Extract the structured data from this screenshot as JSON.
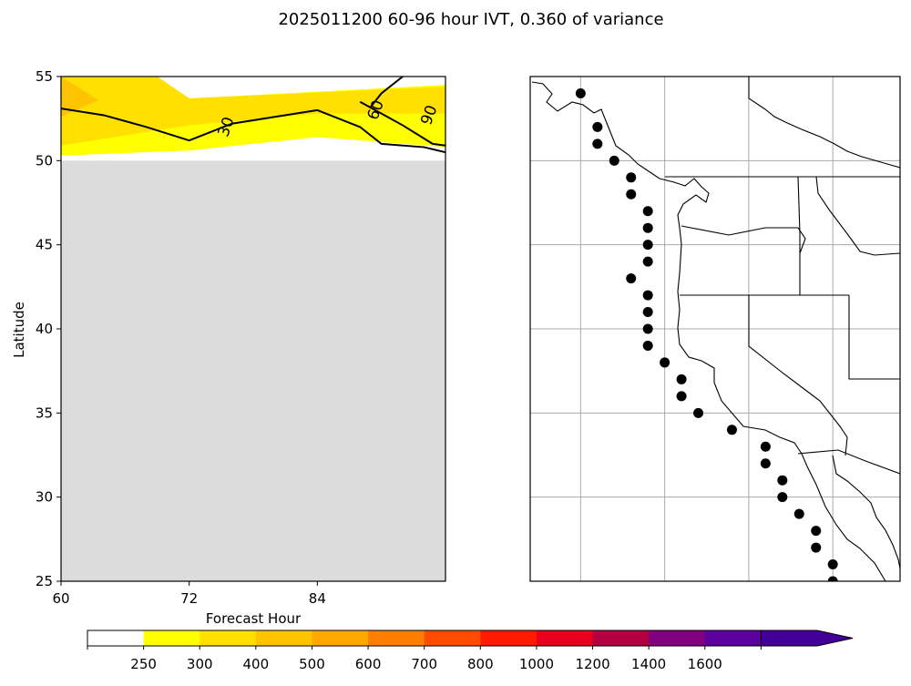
{
  "chart_data": [
    {
      "type": "filled-contour",
      "title": "2025011200 60-96 hour IVT, 0.360 of variance",
      "xlabel": "Forecast Hour",
      "ylabel": "Latitude",
      "xlim": [
        60,
        96
      ],
      "ylim": [
        25,
        55
      ],
      "xticks": [
        "60",
        "72",
        "84"
      ],
      "yticks": [
        "25",
        "30",
        "35",
        "40",
        "45",
        "50",
        "55"
      ],
      "no_data_region": {
        "lat_min": 25,
        "lat_max": 50,
        "color": "#dcdcdc"
      },
      "filled_regions": [
        {
          "level": "250-300",
          "color": "#ffff00",
          "points": [
            [
              60,
              50.3
            ],
            [
              72,
              50.6
            ],
            [
              84,
              51.4
            ],
            [
              96,
              50.8
            ],
            [
              96,
              54.5
            ],
            [
              72,
              53.7
            ],
            [
              69,
              55
            ],
            [
              60,
              55
            ]
          ]
        },
        {
          "level": "300-400",
          "color": "#ffe000",
          "points": [
            [
              60,
              50.9
            ],
            [
              66,
              51.5
            ],
            [
              72,
              52.1
            ],
            [
              84,
              52.8
            ],
            [
              96,
              52.8
            ],
            [
              96,
              54.4
            ],
            [
              72,
              53.7
            ],
            [
              69,
              55
            ],
            [
              60,
              55
            ]
          ]
        },
        {
          "level": "400-500",
          "color": "#ffc400",
          "points": [
            [
              60,
              52.6
            ],
            [
              63.5,
              53.6
            ],
            [
              60,
              55
            ]
          ]
        }
      ],
      "contours": [
        {
          "label": "30",
          "label_at": [
            75.5,
            52.0
          ],
          "points": [
            [
              60,
              53.1
            ],
            [
              64,
              52.7
            ],
            [
              68,
              52.0
            ],
            [
              72,
              51.2
            ],
            [
              76,
              52.2
            ],
            [
              84,
              53.0
            ],
            [
              88,
              52.0
            ],
            [
              90,
              51.0
            ],
            [
              94,
              50.8
            ],
            [
              96,
              50.5
            ]
          ]
        },
        {
          "label": "60",
          "label_at": [
            89.5,
            53.0
          ],
          "points": [
            [
              89,
              53.2
            ],
            [
              90,
              54.0
            ],
            [
              92,
              55.0
            ]
          ]
        },
        {
          "label": "90",
          "label_at": [
            94.5,
            52.7
          ],
          "points": [
            [
              88,
              53.5
            ],
            [
              92,
              52.1
            ],
            [
              94.8,
              51.0
            ],
            [
              96,
              50.9
            ]
          ]
        }
      ],
      "grid": false
    },
    {
      "type": "map",
      "region": "U.S. West Coast / Baja California",
      "lon_range": [
        -130,
        -108
      ],
      "lat_range": [
        25,
        55
      ],
      "grid": true,
      "points_lonlat": [
        [
          -127.0,
          54.0
        ],
        [
          -126.0,
          52.0
        ],
        [
          -126.0,
          51.0
        ],
        [
          -125.0,
          50.0
        ],
        [
          -124.0,
          49.0
        ],
        [
          -124.0,
          48.0
        ],
        [
          -123.0,
          47.0
        ],
        [
          -123.0,
          46.0
        ],
        [
          -123.0,
          45.0
        ],
        [
          -123.0,
          44.0
        ],
        [
          -124.0,
          43.0
        ],
        [
          -123.0,
          42.0
        ],
        [
          -123.0,
          41.0
        ],
        [
          -123.0,
          40.0
        ],
        [
          -123.0,
          39.0
        ],
        [
          -122.0,
          38.0
        ],
        [
          -121.0,
          37.0
        ],
        [
          -121.0,
          36.0
        ],
        [
          -120.0,
          35.0
        ],
        [
          -118.0,
          34.0
        ],
        [
          -116.0,
          33.0
        ],
        [
          -116.0,
          32.0
        ],
        [
          -115.0,
          31.0
        ],
        [
          -115.0,
          30.0
        ],
        [
          -114.0,
          29.0
        ],
        [
          -113.0,
          28.0
        ],
        [
          -113.0,
          27.0
        ],
        [
          -112.0,
          26.0
        ],
        [
          -112.0,
          25.0
        ]
      ]
    }
  ],
  "colorbar": {
    "tick_labels": [
      "250",
      "300",
      "400",
      "500",
      "600",
      "700",
      "800",
      "1000",
      "1200",
      "1400",
      "1600"
    ],
    "colors": [
      "#ffffff",
      "#ffff00",
      "#ffe000",
      "#ffc400",
      "#ffa800",
      "#ff7f00",
      "#ff4c00",
      "#ff1a00",
      "#e8001c",
      "#b20040",
      "#800080",
      "#5c009e",
      "#430099"
    ]
  }
}
